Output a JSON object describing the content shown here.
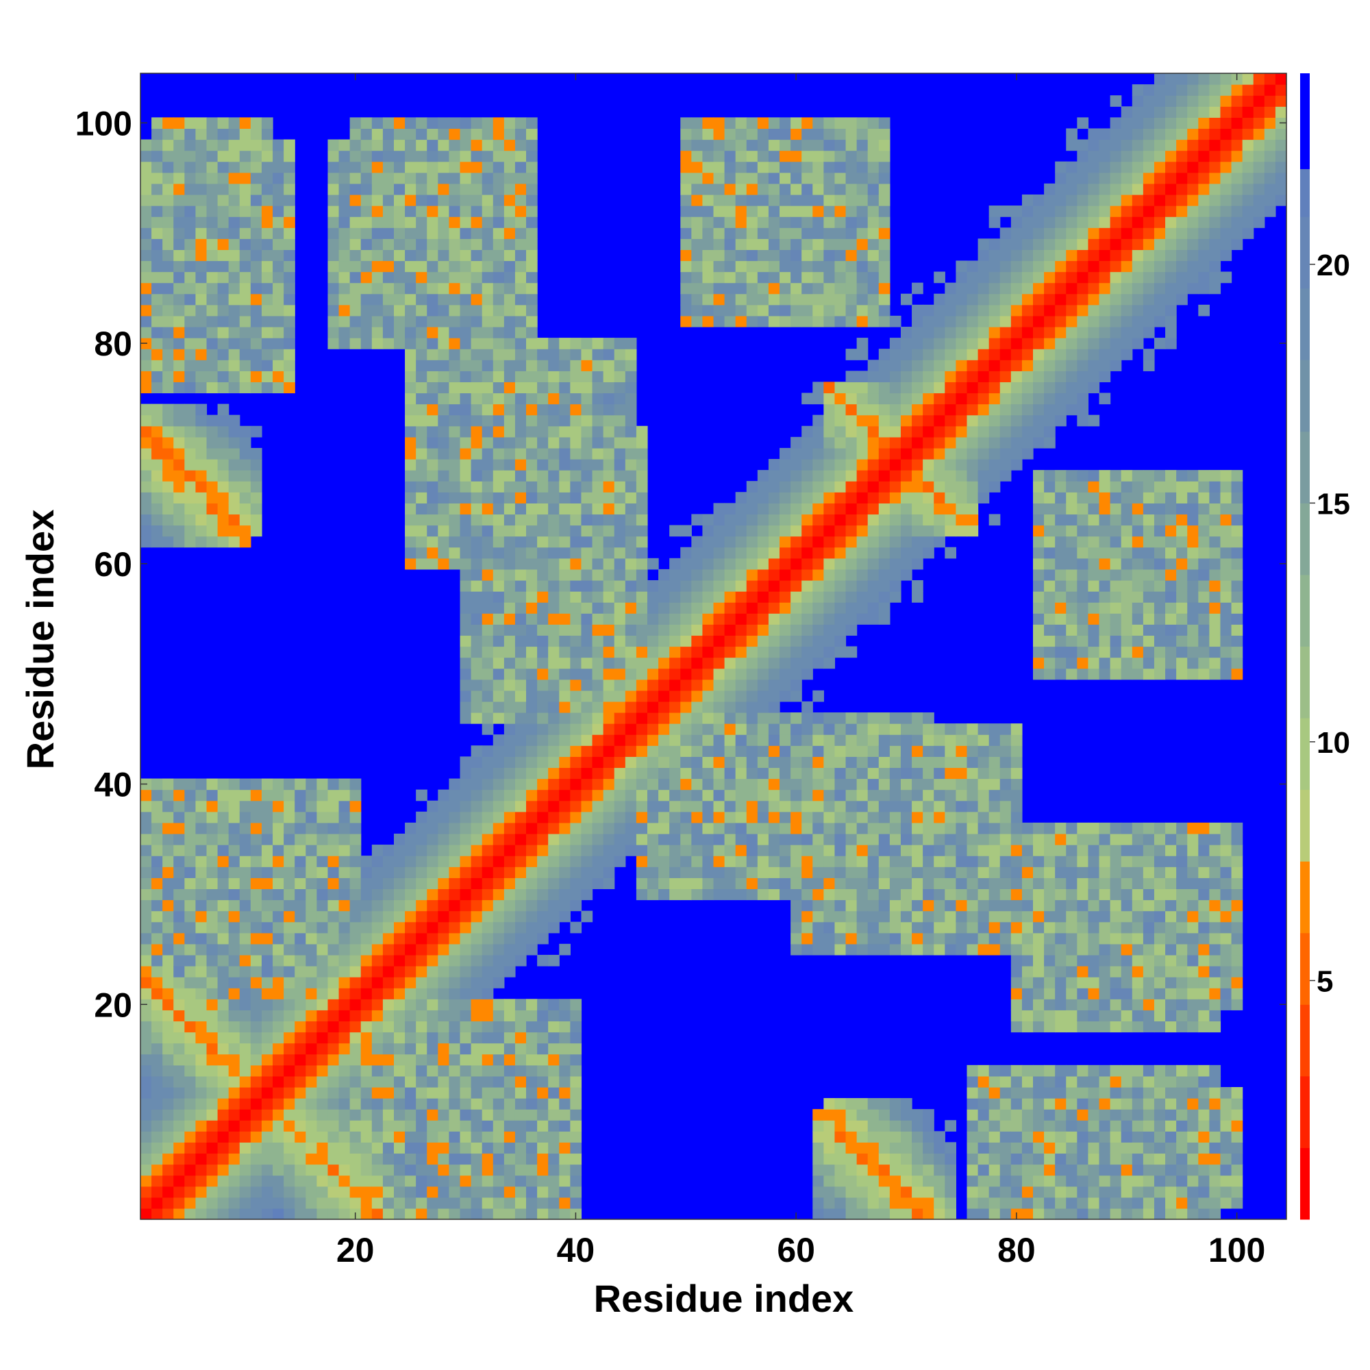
{
  "chart_data": {
    "type": "heatmap",
    "title": "",
    "xlabel": "Residue index",
    "ylabel": "Residue index",
    "x_range": [
      1,
      104
    ],
    "y_range": [
      1,
      104
    ],
    "x_ticks": [
      20,
      40,
      60,
      80,
      100
    ],
    "y_ticks": [
      20,
      40,
      60,
      80,
      100
    ],
    "n_residues": 104,
    "colorbar": {
      "ticks": [
        5,
        10,
        15,
        20
      ],
      "range": [
        0,
        24
      ],
      "position": "right",
      "stops": [
        {
          "max": 1.5,
          "color": "#ff0000"
        },
        {
          "max": 3,
          "color": "#ff2200"
        },
        {
          "max": 4.5,
          "color": "#ff4400"
        },
        {
          "max": 6,
          "color": "#ff6600"
        },
        {
          "max": 7.5,
          "color": "#ff8800"
        },
        {
          "max": 9,
          "color": "#b8cc78"
        },
        {
          "max": 10.5,
          "color": "#a8c880"
        },
        {
          "max": 12,
          "color": "#9cbe88"
        },
        {
          "max": 13.5,
          "color": "#8fb490"
        },
        {
          "max": 15,
          "color": "#84a898"
        },
        {
          "max": 16.5,
          "color": "#7a9ca0"
        },
        {
          "max": 18,
          "color": "#7092a8"
        },
        {
          "max": 19.5,
          "color": "#6a8cb0"
        },
        {
          "max": 21,
          "color": "#6686b6"
        },
        {
          "max": 22,
          "color": "#6080bc"
        },
        {
          "max": 100,
          "color": "#0000ff"
        }
      ]
    },
    "structure": {
      "segments": [
        {
          "from": 1,
          "to": 11
        },
        {
          "from": 12,
          "to": 27
        },
        {
          "from": 28,
          "to": 45
        },
        {
          "from": 46,
          "to": 52
        },
        {
          "from": 53,
          "to": 66
        },
        {
          "from": 67,
          "to": 75
        },
        {
          "from": 76,
          "to": 104
        }
      ],
      "contacts": [
        {
          "a": [
            12,
            22
          ],
          "b": [
            1,
            11
          ],
          "kind": "anti",
          "width": 1.5
        },
        {
          "a": [
            63,
            72
          ],
          "b": [
            1,
            11
          ],
          "kind": "anti",
          "width": 1.5
        },
        {
          "a": [
            65,
            76
          ],
          "b": [
            63,
            74
          ],
          "kind": "anti",
          "width": 1.5
        },
        {
          "a": [
            1,
            10
          ],
          "b": [
            62,
            74
          ],
          "kind": "anti",
          "width": 1.5
        },
        {
          "a": [
            18,
            34
          ],
          "b": [
            80,
            98
          ],
          "kind": "block",
          "width": 0
        },
        {
          "a": [
            1,
            14
          ],
          "b": [
            76,
            98
          ],
          "kind": "block",
          "width": 0
        },
        {
          "a": [
            30,
            46
          ],
          "b": [
            46,
            66
          ],
          "kind": "block",
          "width": 0
        },
        {
          "a": [
            50,
            72
          ],
          "b": [
            30,
            46
          ],
          "kind": "block",
          "width": 0
        },
        {
          "a": [
            50,
            68
          ],
          "b": [
            82,
            100
          ],
          "kind": "block",
          "width": 0
        },
        {
          "a": [
            82,
            100
          ],
          "b": [
            50,
            68
          ],
          "kind": "block",
          "width": 0
        },
        {
          "a": [
            80,
            100
          ],
          "b": [
            20,
            36
          ],
          "kind": "block",
          "width": 0
        },
        {
          "a": [
            82,
            100
          ],
          "b": [
            2,
            12
          ],
          "kind": "block",
          "width": 0
        },
        {
          "a": [
            1,
            20
          ],
          "b": [
            20,
            40
          ],
          "kind": "block",
          "width": 0
        },
        {
          "a": [
            20,
            40
          ],
          "b": [
            1,
            20
          ],
          "kind": "block",
          "width": 0
        },
        {
          "a": [
            25,
            45
          ],
          "b": [
            60,
            80
          ],
          "kind": "block",
          "width": 0
        }
      ]
    }
  }
}
